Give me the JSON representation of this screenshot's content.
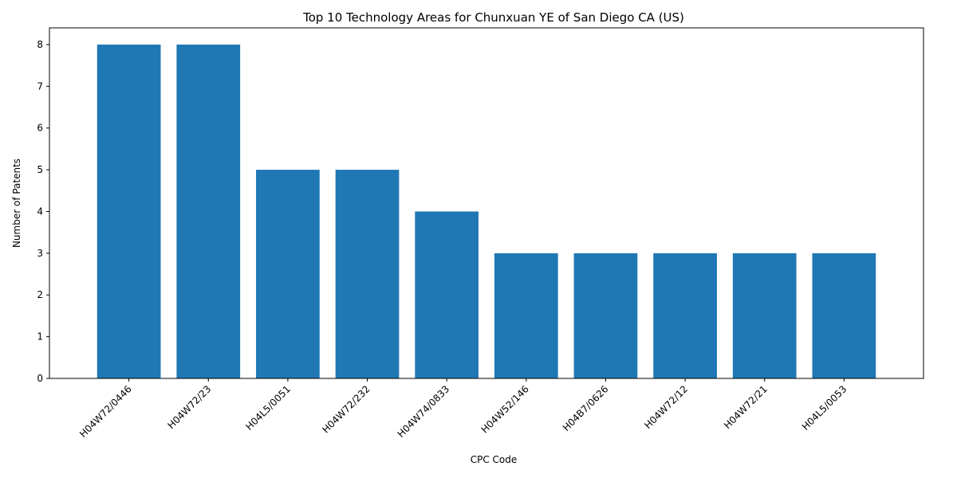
{
  "chart_data": {
    "type": "bar",
    "title": "Top 10 Technology Areas for Chunxuan YE of San Diego CA (US)",
    "xlabel": "CPC Code",
    "ylabel": "Number of Patents",
    "categories": [
      "H04W72/0446",
      "H04W72/23",
      "H04L5/0051",
      "H04W72/232",
      "H04W74/0833",
      "H04W52/146",
      "H04B7/0626",
      "H04W72/12",
      "H04W72/21",
      "H04L5/0053"
    ],
    "values": [
      8,
      8,
      5,
      5,
      4,
      3,
      3,
      3,
      3,
      3
    ],
    "ylim": [
      0,
      8.4
    ],
    "yticks": [
      0,
      1,
      2,
      3,
      4,
      5,
      6,
      7,
      8
    ],
    "grid": false,
    "legend": "none",
    "bar_color": "#1f77b4"
  }
}
